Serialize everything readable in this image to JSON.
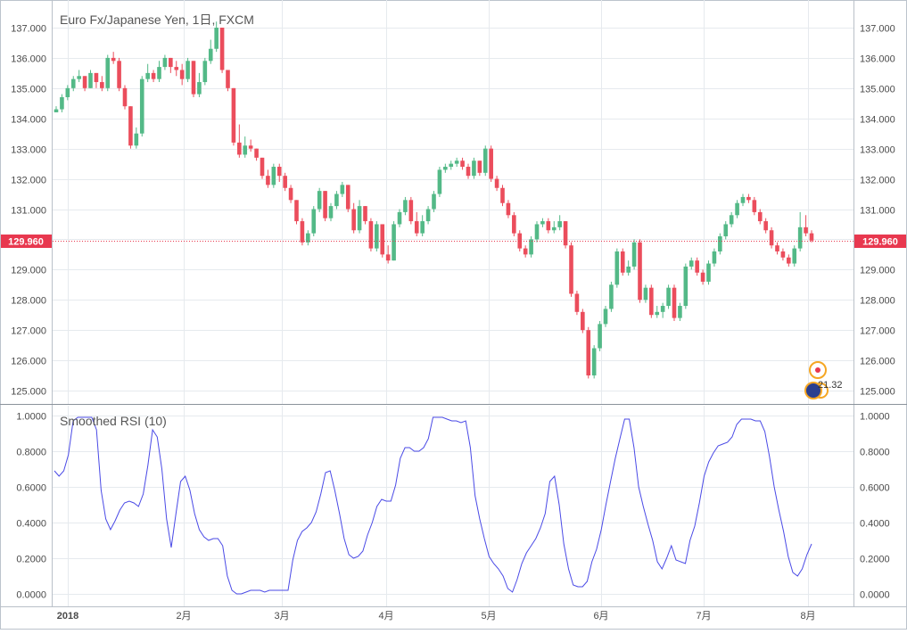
{
  "chart_data": [
    {
      "type": "candlestick",
      "title": "Euro Fx/Japanese Yen, 1日, FXCM",
      "ylim": [
        124.5,
        137.5
      ],
      "y_ticks": [
        "137.000",
        "136.000",
        "135.000",
        "134.000",
        "133.000",
        "132.000",
        "131.000",
        "130.000",
        "129.000",
        "128.000",
        "127.000",
        "126.000",
        "125.000"
      ],
      "last_price": "129.960",
      "colors": {
        "up": "#53b987",
        "down": "#eb4d5c",
        "last_price": "#e8384f"
      },
      "marker_label": "21.32",
      "close": [
        134.3,
        134.7,
        135.0,
        135.3,
        135.4,
        135.0,
        135.5,
        135.2,
        135.0,
        136.0,
        135.9,
        135.0,
        134.4,
        133.1,
        133.5,
        135.3,
        135.5,
        135.3,
        135.7,
        136.0,
        135.7,
        135.6,
        135.3,
        135.9,
        134.8,
        135.2,
        135.9,
        136.3,
        137.0,
        135.6,
        135.0,
        133.2,
        132.8,
        133.1,
        133.0,
        132.7,
        132.1,
        131.8,
        132.4,
        132.1,
        131.7,
        131.3,
        130.6,
        129.9,
        130.2,
        131.0,
        131.6,
        130.7,
        131.1,
        131.5,
        131.8,
        131.0,
        130.3,
        131.1,
        130.6,
        129.7,
        130.5,
        129.5,
        129.3,
        130.5,
        130.9,
        131.3,
        130.6,
        130.2,
        130.6,
        131.0,
        131.5,
        132.3,
        132.4,
        132.5,
        132.6,
        132.4,
        132.1,
        132.6,
        132.2,
        133.0,
        132.0,
        131.7,
        131.2,
        130.8,
        130.2,
        129.7,
        129.5,
        130.0,
        130.5,
        130.6,
        130.3,
        130.4,
        130.6,
        129.8,
        128.2,
        127.6,
        127.0,
        125.5,
        126.4,
        127.2,
        127.7,
        128.5,
        129.6,
        128.9,
        129.1,
        129.9,
        128.0,
        128.4,
        127.5,
        127.6,
        127.8,
        128.4,
        127.4,
        127.8,
        129.1,
        129.3,
        128.9,
        128.6,
        129.2,
        129.6,
        130.1,
        130.5,
        130.8,
        131.2,
        131.4,
        131.3,
        130.9,
        130.6,
        130.3,
        129.8,
        129.6,
        129.4,
        129.2,
        129.7,
        130.4,
        130.2,
        129.96
      ],
      "high": [
        134.4,
        134.8,
        135.1,
        135.4,
        135.6,
        135.3,
        135.6,
        135.4,
        135.4,
        136.1,
        136.2,
        136.0,
        135.1,
        134.4,
        133.7,
        135.4,
        135.8,
        135.6,
        135.9,
        136.1,
        136.0,
        135.9,
        135.8,
        136.0,
        135.8,
        135.5,
        136.0,
        136.6,
        137.2,
        137.0,
        135.5,
        135.0,
        133.8,
        133.4,
        133.3,
        133.0,
        132.6,
        132.3,
        132.5,
        132.5,
        132.2,
        131.8,
        131.3,
        130.7,
        130.3,
        131.1,
        131.7,
        131.6,
        131.2,
        131.6,
        131.9,
        131.8,
        131.2,
        131.3,
        131.1,
        130.7,
        130.6,
        130.5,
        129.8,
        130.6,
        131.0,
        131.4,
        131.4,
        130.9,
        130.8,
        131.1,
        131.6,
        132.4,
        132.5,
        132.6,
        132.7,
        132.7,
        132.5,
        132.7,
        132.6,
        133.1,
        133.1,
        132.1,
        131.8,
        131.3,
        130.9,
        130.3,
        129.8,
        130.1,
        130.6,
        130.7,
        130.7,
        130.6,
        130.8,
        130.6,
        129.9,
        128.3,
        127.7,
        127.1,
        126.5,
        127.3,
        127.8,
        128.6,
        129.7,
        129.7,
        129.3,
        130.0,
        130.0,
        128.5,
        128.5,
        127.8,
        127.9,
        128.5,
        128.5,
        127.9,
        129.2,
        129.4,
        129.4,
        129.0,
        129.3,
        129.7,
        130.2,
        130.6,
        130.9,
        131.3,
        131.5,
        131.5,
        131.4,
        131.0,
        130.7,
        130.4,
        129.9,
        129.7,
        129.5,
        129.8,
        130.9,
        130.8,
        130.3
      ],
      "low": [
        134.2,
        134.2,
        134.6,
        134.9,
        135.2,
        134.9,
        135.0,
        135.0,
        134.9,
        134.9,
        135.8,
        134.9,
        134.3,
        133.0,
        133.0,
        133.4,
        135.2,
        135.2,
        135.2,
        135.6,
        135.5,
        135.4,
        135.1,
        135.2,
        134.7,
        134.7,
        135.1,
        135.8,
        136.2,
        135.5,
        134.9,
        133.1,
        132.7,
        132.7,
        132.9,
        132.6,
        132.0,
        131.7,
        131.7,
        131.9,
        131.6,
        131.2,
        130.5,
        129.8,
        129.8,
        130.1,
        130.9,
        130.6,
        130.6,
        131.0,
        131.4,
        130.9,
        130.2,
        130.2,
        130.5,
        129.6,
        129.6,
        129.4,
        129.2,
        129.3,
        130.4,
        130.8,
        130.5,
        130.1,
        130.1,
        130.5,
        130.9,
        131.4,
        132.2,
        132.3,
        132.4,
        132.3,
        132.0,
        132.0,
        132.1,
        132.1,
        131.9,
        131.6,
        131.1,
        130.7,
        130.1,
        129.6,
        129.4,
        129.4,
        129.9,
        130.4,
        130.2,
        130.2,
        130.3,
        129.7,
        128.1,
        127.5,
        126.9,
        125.4,
        125.4,
        126.3,
        127.1,
        127.6,
        128.4,
        128.8,
        128.8,
        129.0,
        127.9,
        127.9,
        127.4,
        127.4,
        127.4,
        127.7,
        127.3,
        127.3,
        127.7,
        129.0,
        128.8,
        128.5,
        128.5,
        129.1,
        129.5,
        130.0,
        130.4,
        130.7,
        131.1,
        131.2,
        130.8,
        130.5,
        130.2,
        129.7,
        129.5,
        129.3,
        129.1,
        129.1,
        129.6,
        130.1,
        129.9
      ]
    },
    {
      "type": "line",
      "title": "Smoothed RSI (10)",
      "ylim": [
        -0.05,
        1.05
      ],
      "y_ticks": [
        "1.0000",
        "0.8000",
        "0.6000",
        "0.4000",
        "0.2000",
        "0.0000"
      ],
      "colors": {
        "line": "#4a4ae6"
      },
      "values": [
        0.69,
        0.66,
        0.69,
        0.78,
        0.97,
        0.99,
        0.99,
        0.99,
        0.99,
        0.92,
        0.58,
        0.42,
        0.36,
        0.41,
        0.47,
        0.51,
        0.52,
        0.51,
        0.49,
        0.56,
        0.72,
        0.92,
        0.88,
        0.7,
        0.42,
        0.26,
        0.45,
        0.63,
        0.66,
        0.58,
        0.45,
        0.36,
        0.32,
        0.3,
        0.31,
        0.31,
        0.27,
        0.1,
        0.02,
        0.0,
        0.0,
        0.01,
        0.02,
        0.02,
        0.02,
        0.01,
        0.02,
        0.02,
        0.02,
        0.02,
        0.02,
        0.19,
        0.3,
        0.35,
        0.37,
        0.4,
        0.46,
        0.56,
        0.68,
        0.69,
        0.58,
        0.45,
        0.31,
        0.22,
        0.2,
        0.21,
        0.24,
        0.33,
        0.4,
        0.49,
        0.53,
        0.52,
        0.52,
        0.61,
        0.76,
        0.82,
        0.82,
        0.8,
        0.8,
        0.82,
        0.87,
        0.99,
        0.99,
        0.99,
        0.98,
        0.97,
        0.97,
        0.96,
        0.97,
        0.82,
        0.55,
        0.42,
        0.31,
        0.21,
        0.17,
        0.14,
        0.1,
        0.03,
        0.01,
        0.08,
        0.17,
        0.23,
        0.27,
        0.31,
        0.37,
        0.45,
        0.63,
        0.66,
        0.5,
        0.28,
        0.14,
        0.05,
        0.04,
        0.04,
        0.07,
        0.18,
        0.25,
        0.36,
        0.5,
        0.63,
        0.76,
        0.87,
        0.98,
        0.98,
        0.82,
        0.6,
        0.49,
        0.39,
        0.3,
        0.18,
        0.14,
        0.2,
        0.27,
        0.19,
        0.18,
        0.17,
        0.3,
        0.38,
        0.51,
        0.66,
        0.74,
        0.79,
        0.83,
        0.84,
        0.85,
        0.88,
        0.95,
        0.98,
        0.98,
        0.98,
        0.97,
        0.97,
        0.91,
        0.77,
        0.6,
        0.47,
        0.35,
        0.21,
        0.12,
        0.1,
        0.14,
        0.22,
        0.28
      ]
    }
  ],
  "x_axis": {
    "labels": [
      "2018",
      "2月",
      "3月",
      "4月",
      "5月",
      "6月",
      "7月",
      "8月"
    ]
  }
}
